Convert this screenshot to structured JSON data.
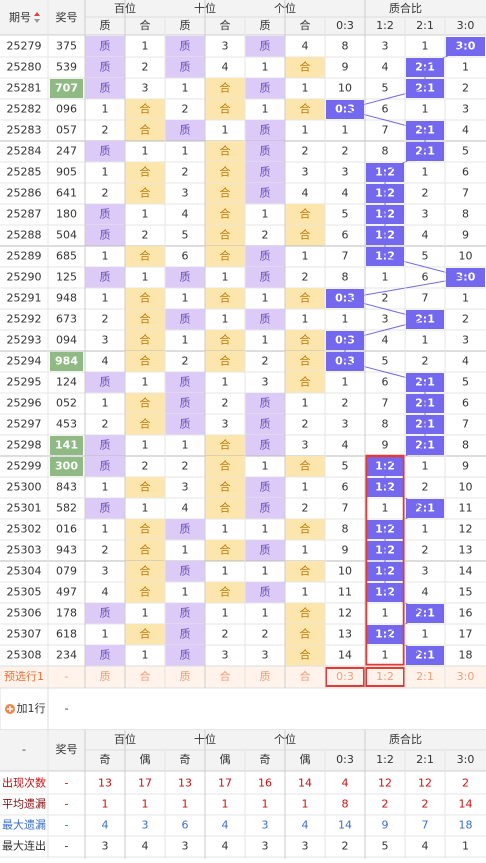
{
  "header": {
    "period": "期号",
    "number": "奖号",
    "groups": [
      "百位",
      "十位",
      "个位",
      "质合比"
    ],
    "sub": [
      "质",
      "合",
      "质",
      "合",
      "质",
      "合",
      "0:3",
      "1:2",
      "2:1",
      "3:0"
    ]
  },
  "rows": [
    {
      "period": "25279",
      "number": "375",
      "cells": [
        "质",
        1,
        "质",
        3,
        "质",
        4,
        8,
        3,
        1,
        "3:0"
      ]
    },
    {
      "period": "25280",
      "number": "539",
      "cells": [
        "质",
        2,
        "质",
        4,
        1,
        "合",
        9,
        4,
        "2:1",
        1
      ]
    },
    {
      "period": "25281",
      "number": "707",
      "hot": true,
      "cells": [
        "质",
        3,
        1,
        "合",
        "质",
        1,
        10,
        5,
        "2:1",
        2
      ]
    },
    {
      "period": "25282",
      "number": "096",
      "cells": [
        1,
        "合",
        2,
        "合",
        1,
        "合",
        "0:3",
        6,
        1,
        3
      ]
    },
    {
      "period": "25283",
      "number": "057",
      "cells": [
        2,
        "合",
        "质",
        1,
        "质",
        1,
        1,
        7,
        "2:1",
        4
      ]
    },
    {
      "period": "25284",
      "number": "247",
      "cells": [
        "质",
        1,
        1,
        "合",
        "质",
        2,
        2,
        8,
        "2:1",
        5
      ]
    },
    {
      "period": "25285",
      "number": "905",
      "cells": [
        1,
        "合",
        2,
        "合",
        "质",
        3,
        3,
        "1:2",
        1,
        6
      ]
    },
    {
      "period": "25286",
      "number": "641",
      "cells": [
        2,
        "合",
        3,
        "合",
        "质",
        4,
        4,
        "1:2",
        2,
        7
      ]
    },
    {
      "period": "25287",
      "number": "180",
      "cells": [
        "质",
        1,
        4,
        "合",
        1,
        "合",
        5,
        "1:2",
        3,
        8
      ]
    },
    {
      "period": "25288",
      "number": "504",
      "cells": [
        "质",
        2,
        5,
        "合",
        2,
        "合",
        6,
        "1:2",
        4,
        9
      ]
    },
    {
      "period": "25289",
      "number": "685",
      "cells": [
        1,
        "合",
        6,
        "合",
        "质",
        1,
        7,
        "1:2",
        5,
        10
      ]
    },
    {
      "period": "25290",
      "number": "125",
      "cells": [
        "质",
        1,
        "质",
        1,
        "质",
        2,
        8,
        1,
        6,
        "3:0"
      ]
    },
    {
      "period": "25291",
      "number": "948",
      "cells": [
        1,
        "合",
        1,
        "合",
        1,
        "合",
        "0:3",
        2,
        7,
        1
      ]
    },
    {
      "period": "25292",
      "number": "673",
      "cells": [
        2,
        "合",
        "质",
        1,
        "质",
        1,
        1,
        3,
        "2:1",
        2
      ]
    },
    {
      "period": "25293",
      "number": "094",
      "cells": [
        3,
        "合",
        1,
        "合",
        1,
        "合",
        "0:3",
        4,
        1,
        3
      ]
    },
    {
      "period": "25294",
      "number": "984",
      "hot": true,
      "cells": [
        4,
        "合",
        2,
        "合",
        2,
        "合",
        "0:3",
        5,
        2,
        4
      ]
    },
    {
      "period": "25295",
      "number": "124",
      "cells": [
        "质",
        1,
        "质",
        1,
        3,
        "合",
        1,
        6,
        "2:1",
        5
      ]
    },
    {
      "period": "25296",
      "number": "052",
      "cells": [
        1,
        "合",
        "质",
        2,
        "质",
        1,
        2,
        7,
        "2:1",
        6
      ]
    },
    {
      "period": "25297",
      "number": "453",
      "cells": [
        2,
        "合",
        "质",
        3,
        "质",
        2,
        3,
        8,
        "2:1",
        7
      ]
    },
    {
      "period": "25298",
      "number": "141",
      "hot": true,
      "cells": [
        "质",
        1,
        1,
        "合",
        "质",
        3,
        4,
        9,
        "2:1",
        8
      ]
    },
    {
      "period": "25299",
      "number": "300",
      "hot": true,
      "cells": [
        "质",
        2,
        2,
        "合",
        1,
        "合",
        5,
        "1:2",
        1,
        9
      ]
    },
    {
      "period": "25300",
      "number": "843",
      "cells": [
        1,
        "合",
        3,
        "合",
        "质",
        1,
        6,
        "1:2",
        2,
        10
      ]
    },
    {
      "period": "25301",
      "number": "582",
      "cells": [
        "质",
        1,
        4,
        "合",
        "质",
        2,
        7,
        1,
        "2:1",
        11
      ]
    },
    {
      "period": "25302",
      "number": "016",
      "cells": [
        1,
        "合",
        "质",
        1,
        1,
        "合",
        8,
        "1:2",
        1,
        12
      ]
    },
    {
      "period": "25303",
      "number": "943",
      "cells": [
        2,
        "合",
        1,
        "合",
        "质",
        1,
        9,
        "1:2",
        2,
        13
      ]
    },
    {
      "period": "25304",
      "number": "079",
      "cells": [
        3,
        "合",
        "质",
        1,
        1,
        "合",
        10,
        "1:2",
        3,
        14
      ]
    },
    {
      "period": "25305",
      "number": "497",
      "cells": [
        4,
        "合",
        1,
        "合",
        "质",
        1,
        11,
        "1:2",
        4,
        15
      ]
    },
    {
      "period": "25306",
      "number": "178",
      "cells": [
        "质",
        1,
        "质",
        1,
        1,
        "合",
        12,
        1,
        "2:1",
        16
      ]
    },
    {
      "period": "25307",
      "number": "618",
      "cells": [
        1,
        "合",
        "质",
        2,
        2,
        "合",
        13,
        "1:2",
        1,
        17
      ]
    },
    {
      "period": "25308",
      "number": "234",
      "cells": [
        "质",
        1,
        "质",
        3,
        3,
        "合",
        14,
        1,
        "2:1",
        18
      ]
    }
  ],
  "preselect": {
    "label": "预选行1",
    "number": "-",
    "cells": [
      "质",
      "合",
      "质",
      "合",
      "质",
      "合",
      "0:3",
      "1:2",
      "2:1",
      "3:0"
    ]
  },
  "add_row": {
    "button": "加1行",
    "value": "-"
  },
  "stats": {
    "header": {
      "blank": "-",
      "number": "奖号",
      "groups": [
        "百位",
        "十位",
        "个位",
        "质合比"
      ],
      "sub": [
        "奇",
        "偶",
        "奇",
        "偶",
        "奇",
        "偶",
        "0:3",
        "1:2",
        "2:1",
        "3:0"
      ]
    },
    "rows": [
      {
        "label": "出现次数",
        "number": "-",
        "values": [
          13,
          17,
          13,
          17,
          16,
          14,
          4,
          12,
          12,
          2
        ]
      },
      {
        "label": "平均遗漏",
        "number": "-",
        "values": [
          1,
          1,
          1,
          1,
          1,
          1,
          8,
          2,
          2,
          14
        ]
      },
      {
        "label": "最大遗漏",
        "number": "-",
        "values": [
          4,
          3,
          6,
          4,
          3,
          4,
          14,
          9,
          7,
          18
        ]
      },
      {
        "label": "最大连出",
        "number": "-",
        "values": [
          3,
          4,
          3,
          4,
          3,
          3,
          2,
          5,
          4,
          1
        ]
      }
    ]
  }
}
